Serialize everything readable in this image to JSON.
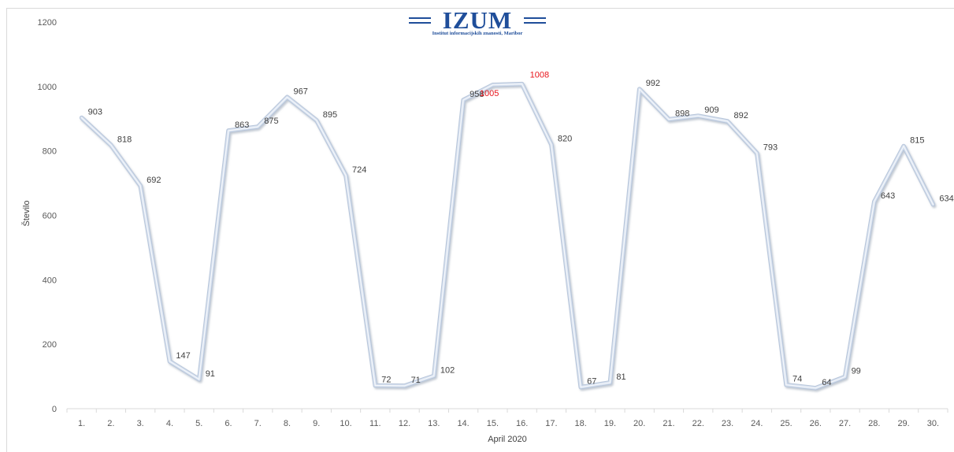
{
  "chart_data": {
    "type": "line",
    "title": "",
    "xlabel": "April 2020",
    "ylabel": "Število",
    "ylim": [
      0,
      1200
    ],
    "yticks": [
      0,
      200,
      400,
      600,
      800,
      1000,
      1200
    ],
    "grid": false,
    "categories": [
      "1.",
      "2.",
      "3.",
      "4.",
      "5.",
      "6.",
      "7.",
      "8.",
      "9.",
      "10.",
      "11.",
      "12.",
      "13.",
      "14.",
      "15.",
      "16.",
      "17.",
      "18.",
      "19.",
      "20.",
      "21.",
      "22.",
      "23.",
      "24.",
      "25.",
      "26.",
      "27.",
      "28.",
      "29.",
      "30."
    ],
    "values": [
      903,
      818,
      692,
      147,
      91,
      863,
      875,
      967,
      895,
      724,
      72,
      71,
      102,
      958,
      1005,
      1008,
      820,
      67,
      81,
      992,
      898,
      909,
      892,
      793,
      74,
      64,
      99,
      643,
      815,
      634
    ],
    "highlighted_labels": [
      "15.",
      "16."
    ],
    "highlight_color": "#e8141b",
    "line_color": "#d6e0ef",
    "label_color": "#404040"
  },
  "logo": {
    "name": "IZUM",
    "subtitle": "Institut informacijskih znanosti, Maribor",
    "color": "#1f4e9a"
  }
}
